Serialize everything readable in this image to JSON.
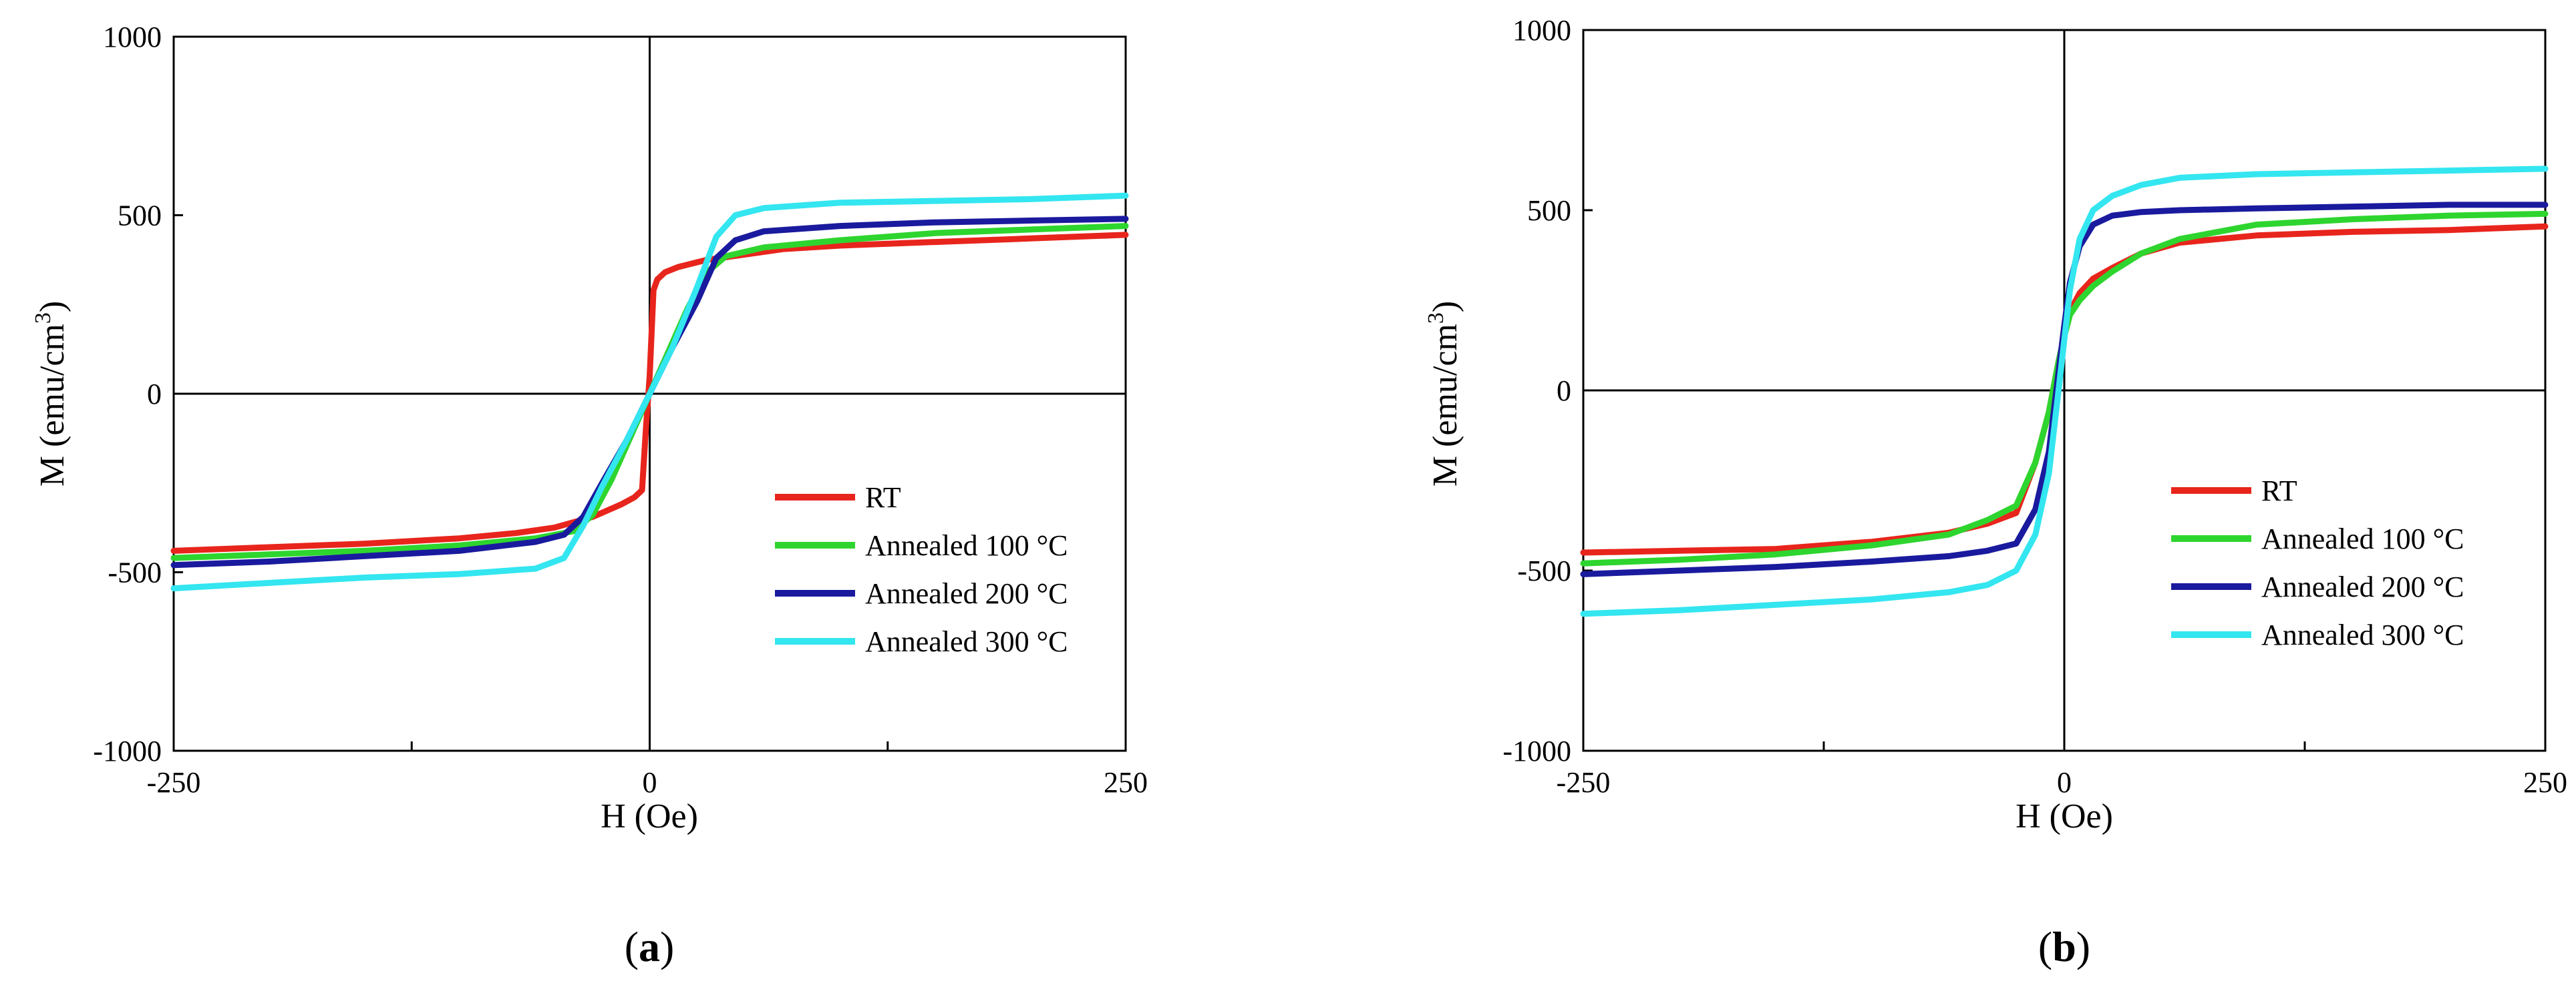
{
  "colors": {
    "RT": "#e8251c",
    "A100": "#2ed52e",
    "A200": "#1a1a9e",
    "A300": "#33e6f0"
  },
  "chart_data": [
    {
      "type": "line",
      "panel_label": "a",
      "title": "",
      "xlabel": "H (Oe)",
      "ylabel": "M (emu/cm",
      "ylabel_sup": "3",
      "ylabel_close": ")",
      "xlim": [
        -250,
        250
      ],
      "ylim": [
        -1000,
        1000
      ],
      "xticks": [
        -250,
        0,
        250
      ],
      "yticks": [
        -1000,
        -500,
        0,
        500,
        1000
      ],
      "legend_position": "lower-right",
      "series": [
        {
          "name": "RT",
          "color": "#e8251c",
          "x": [
            -250,
            -200,
            -150,
            -100,
            -70,
            -50,
            -30,
            -15,
            -8,
            -4,
            -2,
            0,
            2,
            4,
            8,
            15,
            30,
            50,
            70,
            100,
            150,
            200,
            250
          ],
          "y": [
            -440,
            -430,
            -420,
            -405,
            -390,
            -375,
            -345,
            -310,
            -290,
            -270,
            -100,
            50,
            290,
            320,
            340,
            355,
            375,
            390,
            405,
            415,
            425,
            435,
            445
          ]
        },
        {
          "name": "Annealed 100 °C",
          "color": "#2ed52e",
          "x": [
            -250,
            -200,
            -150,
            -100,
            -60,
            -40,
            -30,
            -20,
            -10,
            0,
            10,
            20,
            30,
            40,
            60,
            100,
            150,
            200,
            250
          ],
          "y": [
            -460,
            -450,
            -440,
            -425,
            -405,
            -385,
            -340,
            -240,
            -120,
            0,
            120,
            240,
            340,
            385,
            410,
            430,
            450,
            460,
            470
          ]
        },
        {
          "name": "Annealed 200 °C",
          "color": "#1a1a9e",
          "x": [
            -250,
            -200,
            -150,
            -100,
            -60,
            -45,
            -35,
            -25,
            -12,
            0,
            12,
            25,
            35,
            45,
            60,
            100,
            150,
            200,
            250
          ],
          "y": [
            -480,
            -470,
            -455,
            -440,
            -415,
            -395,
            -345,
            -250,
            -130,
            0,
            130,
            260,
            380,
            430,
            455,
            470,
            480,
            485,
            490
          ]
        },
        {
          "name": "Annealed 300 °C",
          "color": "#33e6f0",
          "x": [
            -250,
            -200,
            -150,
            -100,
            -60,
            -45,
            -35,
            -25,
            -12,
            0,
            12,
            25,
            35,
            45,
            60,
            100,
            150,
            200,
            250
          ],
          "y": [
            -545,
            -530,
            -515,
            -505,
            -490,
            -460,
            -370,
            -260,
            -130,
            0,
            130,
            300,
            440,
            500,
            520,
            535,
            540,
            545,
            555
          ]
        }
      ]
    },
    {
      "type": "line",
      "panel_label": "b",
      "title": "",
      "xlabel": "H (Oe)",
      "ylabel": "M (emu/cm",
      "ylabel_sup": "3",
      "ylabel_close": ")",
      "xlim": [
        -250,
        250
      ],
      "ylim": [
        -1000,
        1000
      ],
      "xticks": [
        -250,
        0,
        250
      ],
      "yticks": [
        -1000,
        -500,
        0,
        500,
        1000
      ],
      "legend_position": "lower-right",
      "series": [
        {
          "name": "RT",
          "color": "#e8251c",
          "x": [
            -250,
            -200,
            -150,
            -100,
            -60,
            -40,
            -25,
            -15,
            -8,
            -3,
            0,
            3,
            8,
            15,
            25,
            40,
            60,
            100,
            150,
            200,
            250
          ],
          "y": [
            -450,
            -445,
            -440,
            -420,
            -395,
            -370,
            -340,
            -200,
            -60,
            80,
            150,
            220,
            270,
            310,
            340,
            380,
            410,
            430,
            440,
            445,
            455
          ]
        },
        {
          "name": "Annealed 100 °C",
          "color": "#2ed52e",
          "x": [
            -250,
            -200,
            -150,
            -100,
            -60,
            -40,
            -25,
            -15,
            -8,
            -3,
            0,
            3,
            8,
            15,
            25,
            40,
            60,
            100,
            150,
            200,
            250
          ],
          "y": [
            -480,
            -470,
            -455,
            -430,
            -400,
            -360,
            -320,
            -200,
            -60,
            80,
            150,
            210,
            250,
            290,
            330,
            380,
            420,
            460,
            475,
            485,
            490
          ]
        },
        {
          "name": "Annealed 200 °C",
          "color": "#1a1a9e",
          "x": [
            -250,
            -200,
            -150,
            -100,
            -60,
            -40,
            -25,
            -15,
            -8,
            -3,
            0,
            3,
            8,
            15,
            25,
            40,
            60,
            100,
            150,
            200,
            250
          ],
          "y": [
            -510,
            -500,
            -490,
            -475,
            -460,
            -445,
            -425,
            -330,
            -170,
            50,
            180,
            300,
            400,
            460,
            485,
            495,
            500,
            505,
            510,
            515,
            515
          ]
        },
        {
          "name": "Annealed 300 °C",
          "color": "#33e6f0",
          "x": [
            -250,
            -200,
            -150,
            -100,
            -60,
            -40,
            -25,
            -15,
            -8,
            -3,
            0,
            3,
            8,
            15,
            25,
            40,
            60,
            100,
            150,
            200,
            250
          ],
          "y": [
            -620,
            -610,
            -595,
            -580,
            -560,
            -540,
            -500,
            -400,
            -230,
            0,
            140,
            280,
            420,
            500,
            540,
            570,
            590,
            600,
            605,
            610,
            615
          ]
        }
      ]
    }
  ]
}
